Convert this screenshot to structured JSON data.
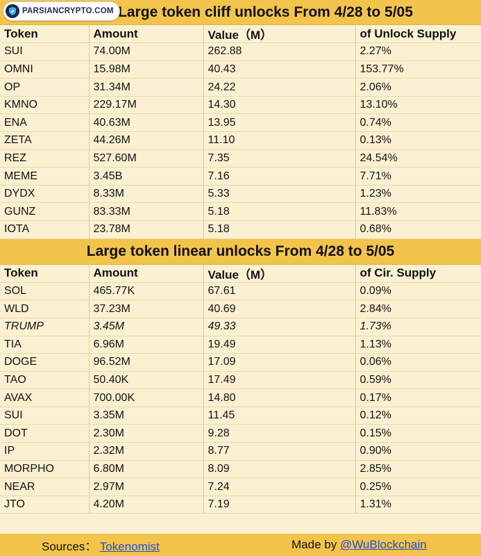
{
  "logo": {
    "text": "PARSIANCRYPTO.COM"
  },
  "cliff": {
    "title": "Large token cliff unlocks From  4/28 to 5/05",
    "headers": [
      "Token",
      "Amount",
      "Value（M）",
      "of Unlock Supply"
    ],
    "rows": [
      [
        "SUI",
        "74.00M",
        "262.88",
        "2.27%"
      ],
      [
        "OMNI",
        "15.98M",
        "40.43",
        "153.77%"
      ],
      [
        "OP",
        "31.34M",
        "24.22",
        "2.06%"
      ],
      [
        "KMNO",
        "229.17M",
        "14.30",
        "13.10%"
      ],
      [
        "ENA",
        "40.63M",
        "13.95",
        "0.74%"
      ],
      [
        "ZETA",
        "44.26M",
        "11.10",
        "0.13%"
      ],
      [
        "REZ",
        "527.60M",
        "7.35",
        "24.54%"
      ],
      [
        "MEME",
        "3.45B",
        "7.16",
        "7.71%"
      ],
      [
        "DYDX",
        "8.33M",
        "5.33",
        "1.23%"
      ],
      [
        "GUNZ",
        "83.33M",
        "5.18",
        "11.83%"
      ],
      [
        "IOTA",
        "23.78M",
        "5.18",
        "0.68%"
      ]
    ]
  },
  "linear": {
    "title": "Large token linear unlocks From    4/28 to 5/05",
    "headers": [
      "Token",
      "Amount",
      "Value（M）",
      "of Cir. Supply"
    ],
    "rows": [
      [
        "SOL",
        "465.77K",
        "67.61",
        "0.09%"
      ],
      [
        "WLD",
        "37.23M",
        "40.69",
        "2.84%"
      ],
      [
        "TRUMP",
        "3.45M",
        "49.33",
        "1.73%"
      ],
      [
        "TIA",
        "6.96M",
        "19.49",
        "1.13%"
      ],
      [
        "DOGE",
        "96.52M",
        "17.09",
        "0.06%"
      ],
      [
        "TAO",
        "50.40K",
        "17.49",
        "0.59%"
      ],
      [
        "AVAX",
        "700.00K",
        "14.80",
        "0.17%"
      ],
      [
        "SUI",
        "3.35M",
        "11.45",
        "0.12%"
      ],
      [
        "DOT",
        "2.30M",
        "9.28",
        "0.15%"
      ],
      [
        "IP",
        "2.32M",
        "8.77",
        "0.90%"
      ],
      [
        "MORPHO",
        "6.80M",
        "8.09",
        "2.85%"
      ],
      [
        "NEAR",
        "2.97M",
        "7.24",
        "0.25%"
      ],
      [
        "JTO",
        "4.20M",
        "7.19",
        "1.31%"
      ]
    ]
  },
  "footer": {
    "sources_label": "Sources：",
    "sources_link": "Tokenomist",
    "made_by_label": "Made by ",
    "made_by_link": "@WuBlockchain"
  }
}
